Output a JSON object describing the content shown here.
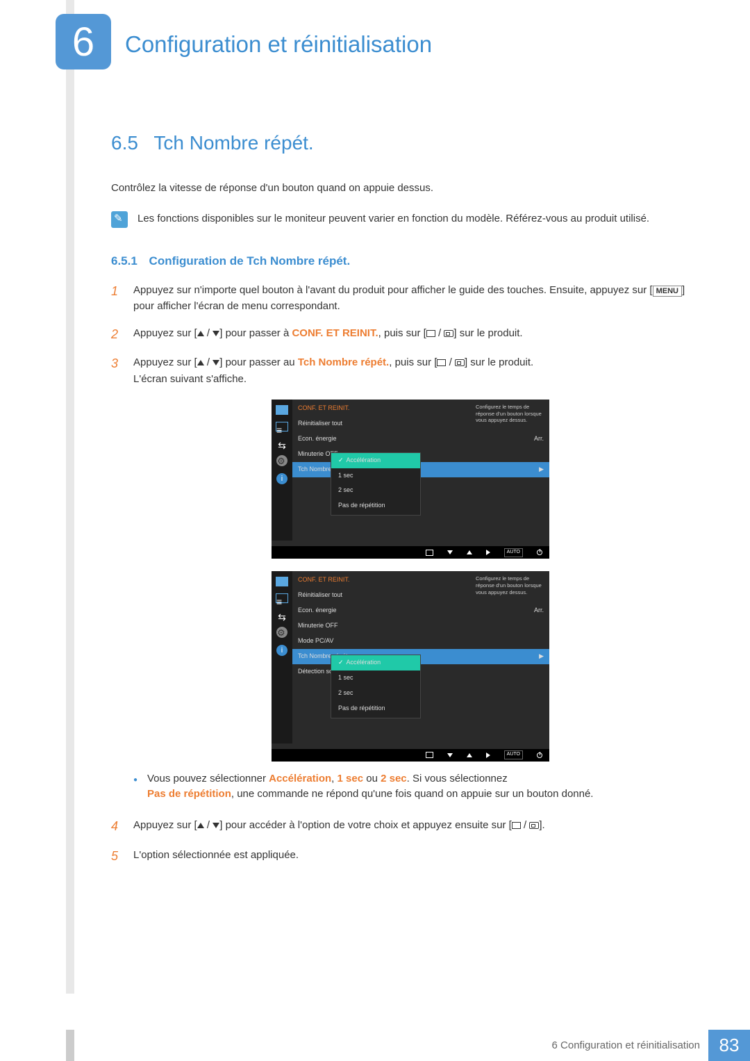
{
  "chapter": {
    "number": "6",
    "title": "Configuration et réinitialisation"
  },
  "section": {
    "number": "6.5",
    "title": "Tch Nombre répét."
  },
  "intro": "Contrôlez la vitesse de réponse d'un bouton quand on appuie dessus.",
  "note": "Les fonctions disponibles sur le moniteur peuvent varier en fonction du modèle. Référez-vous au produit utilisé.",
  "subsection": {
    "number": "6.5.1",
    "title": "Configuration de Tch Nombre répét."
  },
  "steps": {
    "s1": {
      "num": "1",
      "prefix": "Appuyez sur n'importe quel bouton à l'avant du produit pour afficher le guide des touches. Ensuite, appuyez sur [",
      "key": "MENU",
      "suffix": "] pour afficher l'écran de menu correspondant."
    },
    "s2": {
      "num": "2",
      "a": "Appuyez sur [",
      "b": "] pour passer à ",
      "kw": "CONF. ET REINIT.",
      "c": ", puis sur [",
      "d": "] sur le produit."
    },
    "s3": {
      "num": "3",
      "a": "Appuyez sur [",
      "b": "] pour passer au ",
      "kw": "Tch Nombre répét.",
      "c": ", puis sur [",
      "d": "] sur le produit.",
      "e": "L'écran suivant s'affiche."
    },
    "s4": {
      "num": "4",
      "a": "Appuyez sur [",
      "b": "] pour accéder à l'option de votre choix et appuyez ensuite sur [",
      "c": "]."
    },
    "s5": {
      "num": "5",
      "text": "L'option sélectionnée est appliquée."
    }
  },
  "bullet": {
    "a": "Vous pouvez sélectionner ",
    "kw1": "Accélération",
    "kw2": "1 sec",
    "or": " ou ",
    "kw3": "2 sec",
    "b": ". Si vous sélectionnez ",
    "kw4": "Pas de répétition",
    "c": ", une commande ne répond qu'une fois quand on appuie sur un bouton donné."
  },
  "osd1": {
    "title": "CONF. ET REINIT.",
    "items": [
      "Réinitialiser tout",
      "Econ. énergie",
      "Minuterie OFF",
      "Tch Nombre répét."
    ],
    "val_energy": "Arr.",
    "tooltip": "Configurez le temps de réponse d'un bouton lorsque vous appuyez dessus.",
    "sub_sel": "Accélération",
    "sub": [
      "1 sec",
      "2 sec",
      "Pas de répétition"
    ],
    "auto": "AUTO"
  },
  "osd2": {
    "title": "CONF. ET REINIT.",
    "items": [
      "Réinitialiser tout",
      "Econ. énergie",
      "Minuterie OFF",
      "Mode PC/AV",
      "Tch Nombre répét.",
      "Détection source"
    ],
    "val_energy": "Arr.",
    "tooltip": "Configurez le temps de réponse d'un bouton lorsque vous appuyez dessus.",
    "sub_sel": "Accélération",
    "sub": [
      "1 sec",
      "2 sec",
      "Pas de répétition"
    ],
    "auto": "AUTO"
  },
  "footer": {
    "chapter": "6 Configuration et réinitialisation",
    "page": "83"
  },
  "colors": {
    "primary_blue": "#3b8dd0",
    "badge_blue": "#5498d6",
    "orange": "#ed7d31",
    "teal": "#20c9a8",
    "dark_bg": "#2a2a2a",
    "gray_bar": "#e8e8e8"
  }
}
